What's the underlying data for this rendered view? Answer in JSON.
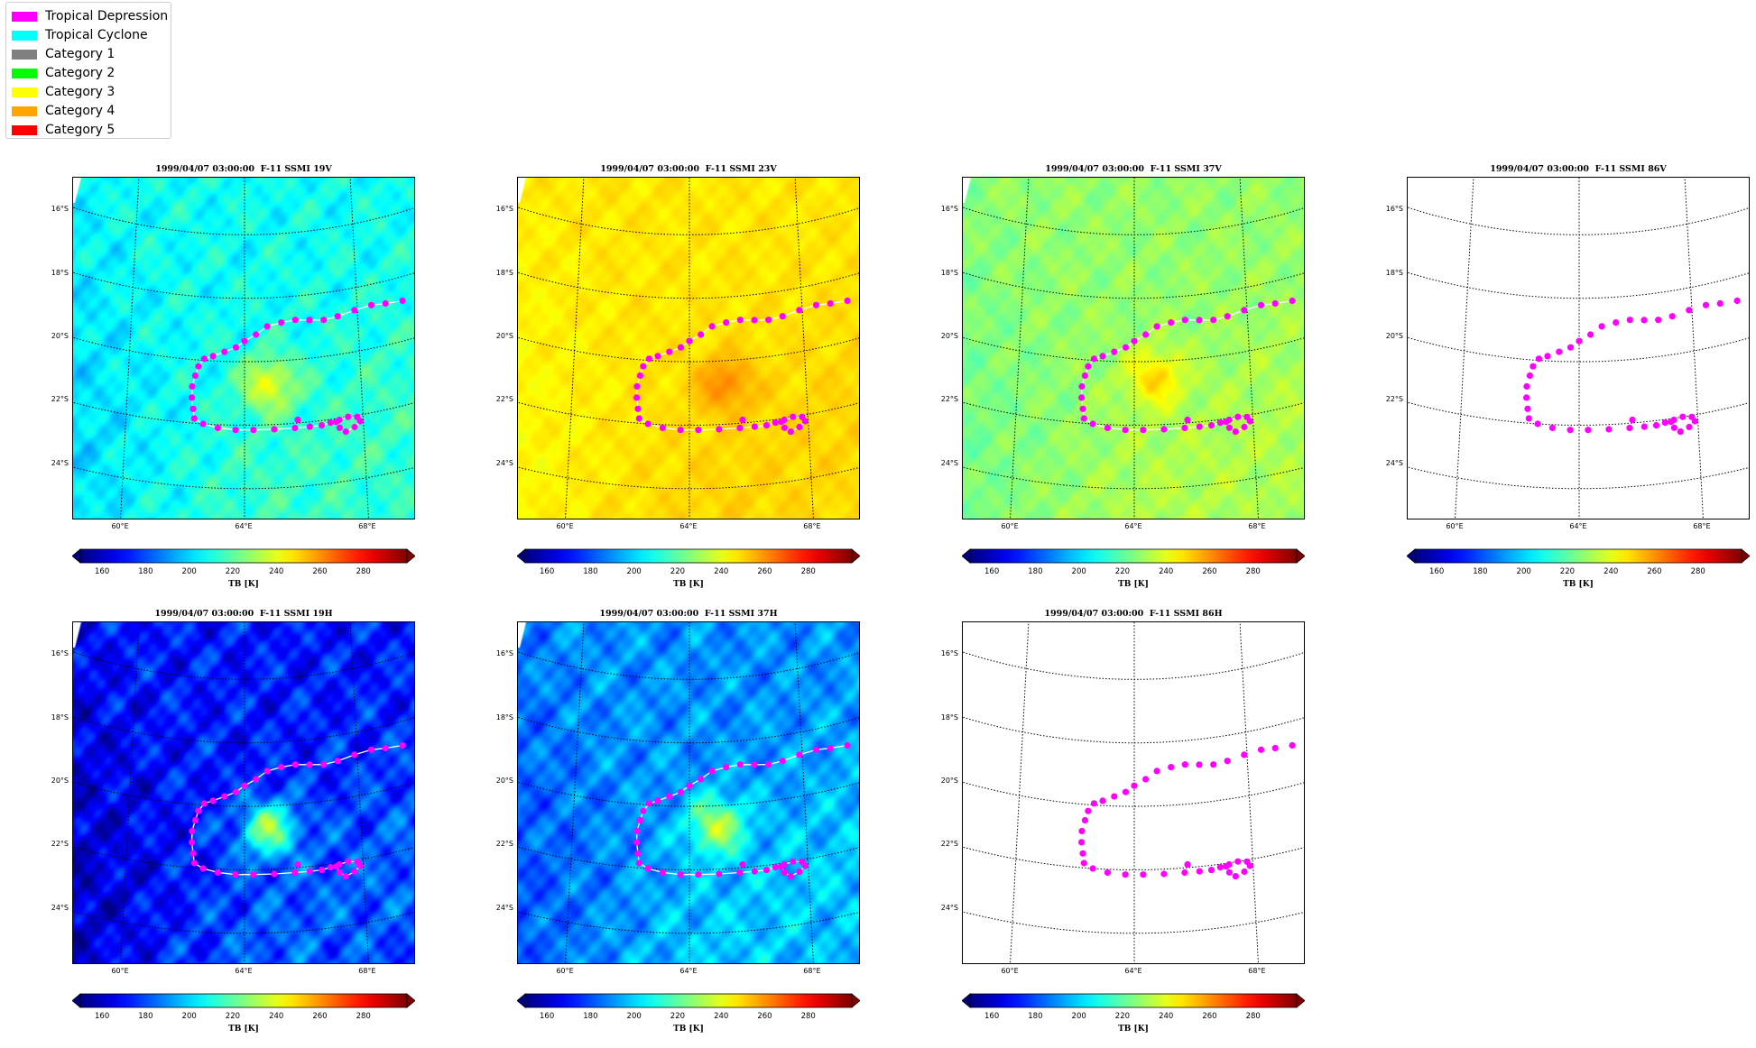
{
  "legend": {
    "items": [
      {
        "label": "Tropical Depression",
        "color": "#ff00ff"
      },
      {
        "label": "Tropical Cyclone",
        "color": "#00ffff"
      },
      {
        "label": "Category 1",
        "color": "#808080"
      },
      {
        "label": "Category 2",
        "color": "#00ff00"
      },
      {
        "label": "Category 3",
        "color": "#ffff00"
      },
      {
        "label": "Category 4",
        "color": "#ffa500"
      },
      {
        "label": "Category 5",
        "color": "#ff0000"
      }
    ]
  },
  "colorbar": {
    "label": "TB [K]",
    "ticks": [
      "160",
      "180",
      "200",
      "220",
      "240",
      "260",
      "280"
    ],
    "range": [
      150,
      300
    ],
    "colormap": "jet",
    "extend": "both"
  },
  "map_axes": {
    "lat_labels": [
      "16°S",
      "18°S",
      "20°S",
      "22°S",
      "24°S"
    ],
    "lon_labels": [
      "60°E",
      "64°E",
      "68°E"
    ],
    "lats": [
      -16,
      -18,
      -20,
      -22,
      -24
    ],
    "lons": [
      60,
      64,
      68
    ],
    "extent": {
      "lon_min": 58,
      "lon_max": 70,
      "lat_min": -25,
      "lat_max": -14.2
    },
    "gridline_style": "dotted"
  },
  "chart_data": [
    {
      "type": "heatmap",
      "title": "1999/04/07 03:00:00  F-11 SSMI 19V",
      "channel": "19V",
      "data_present": true,
      "base_tb": 208,
      "warm_anomaly_tb": 244,
      "warm_core": {
        "lon": 64.8,
        "lat": -20.7
      }
    },
    {
      "type": "heatmap",
      "title": "1999/04/07 03:00:00  F-11 SSMI 23V",
      "channel": "23V",
      "data_present": true,
      "base_tb": 247,
      "warm_anomaly_tb": 262,
      "warm_core": {
        "lon": 65.2,
        "lat": -20.7
      }
    },
    {
      "type": "heatmap",
      "title": "1999/04/07 03:00:00  F-11 SSMI 37V",
      "channel": "37V",
      "data_present": true,
      "base_tb": 228,
      "warm_anomaly_tb": 252,
      "warm_core": {
        "lon": 64.7,
        "lat": -20.5
      }
    },
    {
      "type": "heatmap",
      "title": "1999/04/07 03:00:00  F-11 SSMI 86V",
      "channel": "86V",
      "data_present": false
    },
    {
      "type": "heatmap",
      "title": "1999/04/07 03:00:00  F-11 SSMI 19H",
      "channel": "19H",
      "data_present": true,
      "base_tb": 172,
      "warm_anomaly_tb": 232,
      "warm_core": {
        "lon": 64.8,
        "lat": -20.7
      }
    },
    {
      "type": "heatmap",
      "title": "1999/04/07 03:00:00  F-11 SSMI 37H",
      "channel": "37H",
      "data_present": true,
      "base_tb": 190,
      "warm_anomaly_tb": 238,
      "warm_core": {
        "lon": 64.9,
        "lat": -20.6
      }
    },
    {
      "type": "heatmap",
      "title": "1999/04/07 03:00:00  F-11 SSMI 86H",
      "channel": "86H",
      "data_present": false
    }
  ],
  "track": {
    "category": "Tropical Depression",
    "color": "#ff00ff",
    "points": [
      {
        "lon": 69.6,
        "lat": -18.75
      },
      {
        "lon": 69.0,
        "lat": -18.7
      },
      {
        "lon": 68.5,
        "lat": -18.65
      },
      {
        "lon": 67.9,
        "lat": -18.7
      },
      {
        "lon": 67.3,
        "lat": -18.8
      },
      {
        "lon": 66.8,
        "lat": -18.85
      },
      {
        "lon": 66.3,
        "lat": -18.8
      },
      {
        "lon": 65.8,
        "lat": -18.75
      },
      {
        "lon": 65.3,
        "lat": -18.8
      },
      {
        "lon": 64.8,
        "lat": -18.9
      },
      {
        "lon": 64.4,
        "lat": -19.15
      },
      {
        "lon": 64.0,
        "lat": -19.35
      },
      {
        "lon": 63.7,
        "lat": -19.55
      },
      {
        "lon": 63.3,
        "lat": -19.7
      },
      {
        "lon": 62.9,
        "lat": -19.85
      },
      {
        "lon": 62.6,
        "lat": -19.95
      },
      {
        "lon": 62.4,
        "lat": -20.2
      },
      {
        "lon": 62.3,
        "lat": -20.5
      },
      {
        "lon": 62.2,
        "lat": -20.85
      },
      {
        "lon": 62.2,
        "lat": -21.2
      },
      {
        "lon": 62.25,
        "lat": -21.55
      },
      {
        "lon": 62.3,
        "lat": -21.85
      },
      {
        "lon": 62.6,
        "lat": -22.0
      },
      {
        "lon": 63.1,
        "lat": -22.1
      },
      {
        "lon": 63.7,
        "lat": -22.15
      },
      {
        "lon": 64.3,
        "lat": -22.15
      },
      {
        "lon": 65.0,
        "lat": -22.15
      },
      {
        "lon": 65.7,
        "lat": -22.15
      },
      {
        "lon": 66.2,
        "lat": -22.15
      },
      {
        "lon": 66.6,
        "lat": -22.15
      },
      {
        "lon": 66.9,
        "lat": -22.1
      },
      {
        "lon": 67.2,
        "lat": -22.05
      },
      {
        "lon": 67.5,
        "lat": -22.0
      },
      {
        "lon": 67.8,
        "lat": -22.05
      },
      {
        "lon": 67.9,
        "lat": -22.2
      },
      {
        "lon": 67.7,
        "lat": -22.35
      },
      {
        "lon": 67.4,
        "lat": -22.45
      },
      {
        "lon": 67.2,
        "lat": -22.3
      },
      {
        "lon": 67.1,
        "lat": -22.1
      }
    ],
    "offtrack_points": [
      {
        "lon": 65.8,
        "lat": -21.9
      }
    ]
  }
}
